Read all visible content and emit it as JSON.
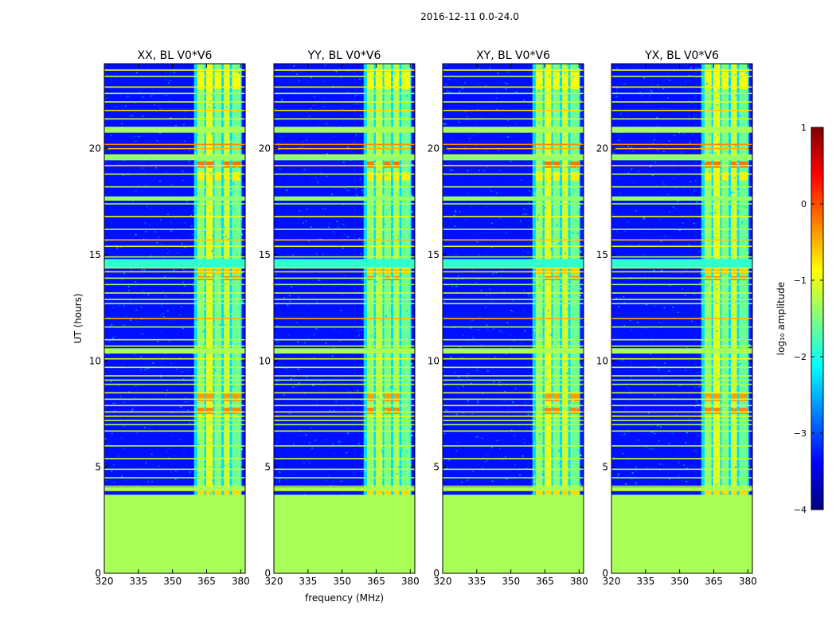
{
  "figure": {
    "suptitle": "2016-12-11 0.0-24.0",
    "ylabel": "UT (hours)",
    "xlabel": "frequency (MHz)"
  },
  "colorbar": {
    "label": "log₁₀ amplitude",
    "range": [
      -4,
      1
    ],
    "ticks": [
      "1",
      "0",
      "−1",
      "−2",
      "−3",
      "−4"
    ],
    "tick_values": [
      1,
      0,
      -1,
      -2,
      -3,
      -4
    ],
    "colormap": [
      "#00007f",
      "#0000ff",
      "#007fff",
      "#00ffff",
      "#7fff7f",
      "#ffff00",
      "#ff7f00",
      "#ff0000",
      "#7f0000"
    ]
  },
  "chart_data": [
    {
      "type": "heatmap",
      "title": "XX, BL V0*V6",
      "xlabel": "",
      "ylabel": "UT (hours)",
      "xlim": [
        320,
        382
      ],
      "ylim": [
        0,
        24
      ],
      "xticks": [
        "320",
        "335",
        "350",
        "365",
        "380"
      ],
      "yticks": [
        "0",
        "5",
        "10",
        "15",
        "20"
      ],
      "no_data_below_hour": 3.7,
      "no_data_level": -1.3,
      "background_level": -3.3,
      "rfi_band_mhz": [
        359.5,
        380.5
      ],
      "variant": 0
    },
    {
      "type": "heatmap",
      "title": "YY, BL V0*V6",
      "xlabel": "frequency (MHz)",
      "ylabel": "",
      "xlim": [
        320,
        382
      ],
      "ylim": [
        0,
        24
      ],
      "xticks": [
        "320",
        "335",
        "350",
        "365",
        "380"
      ],
      "yticks": [
        "0",
        "5",
        "10",
        "15",
        "20"
      ],
      "no_data_below_hour": 3.7,
      "no_data_level": -1.3,
      "background_level": -3.3,
      "rfi_band_mhz": [
        359.5,
        380.5
      ],
      "variant": 1
    },
    {
      "type": "heatmap",
      "title": "XY, BL V0*V6",
      "xlabel": "",
      "ylabel": "",
      "xlim": [
        320,
        382
      ],
      "ylim": [
        0,
        24
      ],
      "xticks": [
        "320",
        "335",
        "350",
        "365",
        "380"
      ],
      "yticks": [
        "0",
        "5",
        "10",
        "15",
        "20"
      ],
      "no_data_below_hour": 3.7,
      "no_data_level": -1.3,
      "background_level": -3.3,
      "rfi_band_mhz": [
        359.5,
        380.5
      ],
      "variant": 2
    },
    {
      "type": "heatmap",
      "title": "YX, BL V0*V6",
      "xlabel": "",
      "ylabel": "",
      "xlim": [
        320,
        382
      ],
      "ylim": [
        0,
        24
      ],
      "xticks": [
        "320",
        "335",
        "350",
        "365",
        "380"
      ],
      "yticks": [
        "0",
        "5",
        "10",
        "15",
        "20"
      ],
      "no_data_below_hour": 3.7,
      "no_data_level": -1.3,
      "background_level": -3.3,
      "rfi_band_mhz": [
        359.5,
        380.5
      ],
      "variant": 3
    }
  ]
}
